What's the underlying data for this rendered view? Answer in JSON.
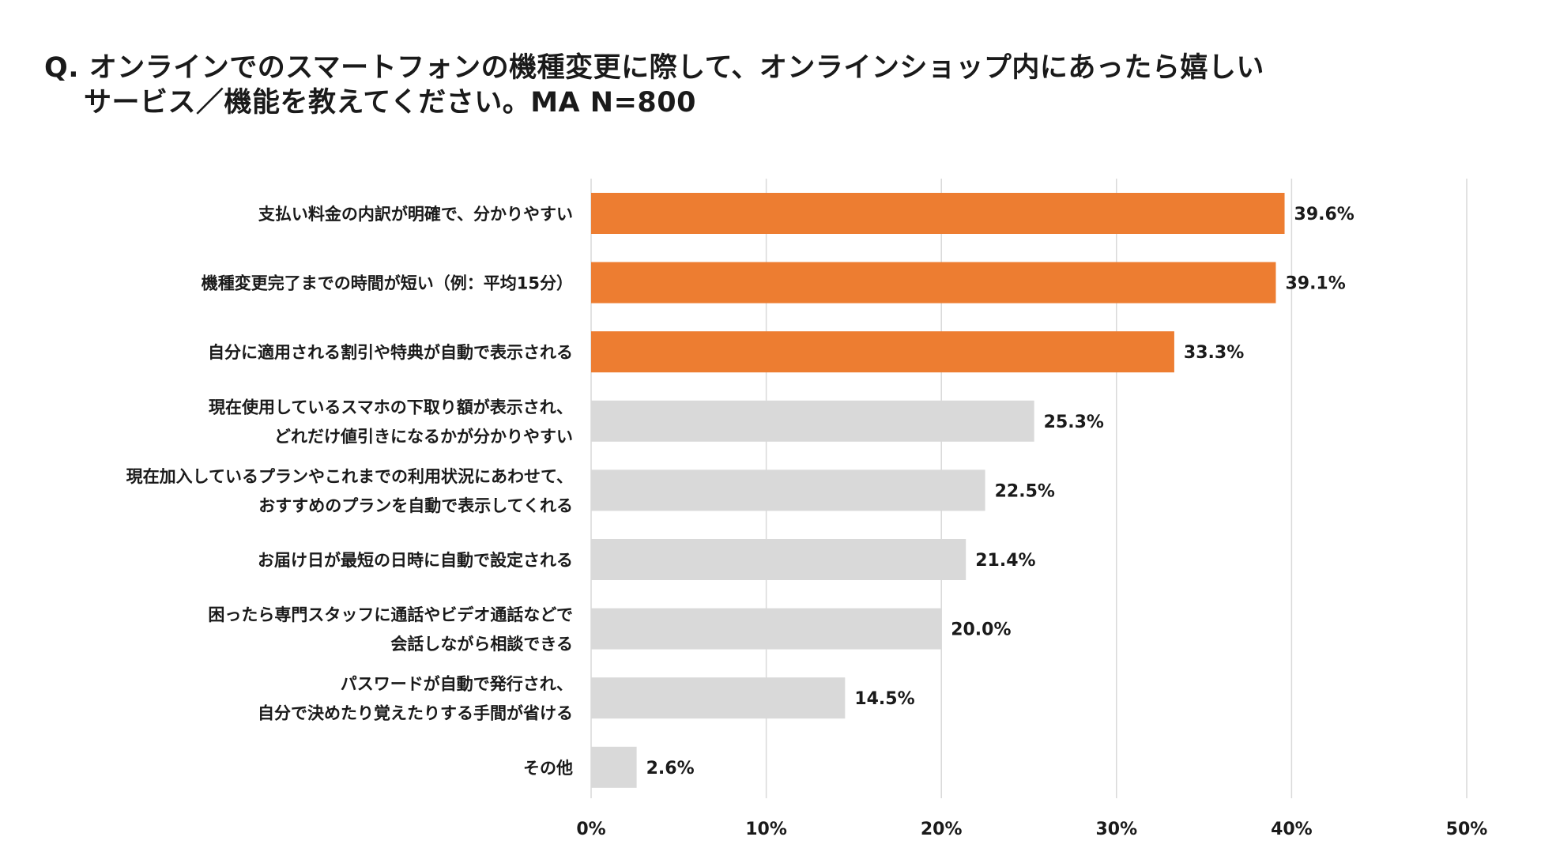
{
  "title": {
    "line1": "Q. オンラインでのスマートフォンの機種変更に際して、オンラインショップ内にあったら嬉しい",
    "line2": "サービス／機能を教えてください。MA N=800"
  },
  "colors": {
    "highlight": "#ED7D31",
    "default": "#D9D9D9",
    "grid": "#D9D9D9",
    "text": "#1A1A1A"
  },
  "chart_data": {
    "type": "bar",
    "orientation": "horizontal",
    "title": "Q. オンラインでのスマートフォンの機種変更に際して、オンラインショップ内にあったら嬉しいサービス／機能を教えてください。MA N=800",
    "xlabel": "",
    "ylabel": "",
    "xlim": [
      0,
      50
    ],
    "ticks": [
      "0%",
      "10%",
      "20%",
      "30%",
      "40%",
      "50%"
    ],
    "tick_values": [
      0,
      10,
      20,
      30,
      40,
      50
    ],
    "grid": true,
    "categories": [
      [
        "支払い料金の内訳が明確で、分かりやすい"
      ],
      [
        "機種変更完了までの時間が短い（例：平均15分）"
      ],
      [
        "自分に適用される割引や特典が自動で表示される"
      ],
      [
        "現在使用しているスマホの下取り額が表示され、",
        "どれだけ値引きになるかが分かりやすい"
      ],
      [
        "現在加入しているプランやこれまでの利用状況にあわせて、",
        "おすすめのプランを自動で表示してくれる"
      ],
      [
        "お届け日が最短の日時に自動で設定される"
      ],
      [
        "困ったら専門スタッフに通話やビデオ通話などで",
        "会話しながら相談できる"
      ],
      [
        "パスワードが自動で発行され、",
        "自分で決めたり覚えたりする手間が省ける"
      ],
      [
        "その他"
      ]
    ],
    "values": [
      39.6,
      39.1,
      33.3,
      25.3,
      22.5,
      21.4,
      20.0,
      14.5,
      2.6
    ],
    "value_labels": [
      "39.6%",
      "39.1%",
      "33.3%",
      "25.3%",
      "22.5%",
      "21.4%",
      "20.0%",
      "14.5%",
      "2.6%"
    ],
    "highlighted": [
      true,
      true,
      true,
      false,
      false,
      false,
      false,
      false,
      false
    ]
  }
}
